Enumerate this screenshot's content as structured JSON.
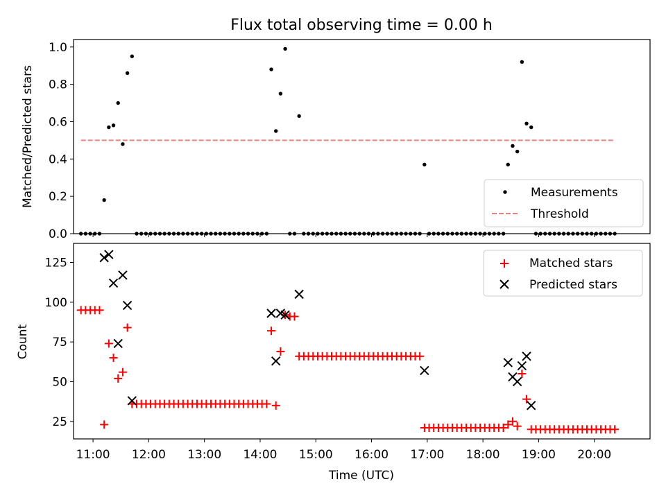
{
  "chart_data": [
    {
      "type": "scatter",
      "title": "Flux total observing time = 0.00 h",
      "xlabel": "",
      "ylabel": "Matched/Predicted stars",
      "xlim": [
        "10:39",
        "21:00"
      ],
      "ylim": [
        0,
        1.04
      ],
      "yticks": [
        0.0,
        0.2,
        0.4,
        0.6,
        0.8,
        1.0
      ],
      "ytick_labels": [
        "0.0",
        "0.2",
        "0.4",
        "0.6",
        "0.8",
        "1.0"
      ],
      "legend": {
        "placement": "lower-right",
        "entries": [
          "Measurements",
          "Threshold"
        ]
      },
      "series": [
        {
          "name": "Measurements",
          "marker": "dot",
          "color": "#000000",
          "points": [
            [
              "10:47",
              0
            ],
            [
              "10:52",
              0
            ],
            [
              "10:57",
              0
            ],
            [
              "11:02",
              0
            ],
            [
              "11:07",
              0
            ],
            [
              "11:12",
              0.18
            ],
            [
              "11:17",
              0.57
            ],
            [
              "11:22",
              0.58
            ],
            [
              "11:27",
              0.7
            ],
            [
              "11:32",
              0.48
            ],
            [
              "11:37",
              0.86
            ],
            [
              "11:42",
              0.95
            ],
            [
              "11:47",
              0
            ],
            [
              "11:52",
              0
            ],
            [
              "11:57",
              0
            ],
            [
              "12:02",
              0
            ],
            [
              "12:07",
              0
            ],
            [
              "12:12",
              0
            ],
            [
              "12:17",
              0
            ],
            [
              "12:22",
              0
            ],
            [
              "12:27",
              0
            ],
            [
              "12:32",
              0
            ],
            [
              "12:37",
              0
            ],
            [
              "12:42",
              0
            ],
            [
              "12:47",
              0
            ],
            [
              "12:52",
              0
            ],
            [
              "12:57",
              0
            ],
            [
              "13:02",
              0
            ],
            [
              "13:07",
              0
            ],
            [
              "13:12",
              0
            ],
            [
              "13:17",
              0
            ],
            [
              "13:22",
              0
            ],
            [
              "13:27",
              0
            ],
            [
              "13:32",
              0
            ],
            [
              "13:37",
              0
            ],
            [
              "13:42",
              0
            ],
            [
              "13:47",
              0
            ],
            [
              "13:52",
              0
            ],
            [
              "13:57",
              0
            ],
            [
              "14:02",
              0
            ],
            [
              "14:07",
              0
            ],
            [
              "14:12",
              0.88
            ],
            [
              "14:17",
              0.55
            ],
            [
              "14:22",
              0.75
            ],
            [
              "14:27",
              0.99
            ],
            [
              "14:32",
              0
            ],
            [
              "14:37",
              0
            ],
            [
              "14:42",
              0.63
            ],
            [
              "14:47",
              0
            ],
            [
              "14:52",
              0
            ],
            [
              "14:57",
              0
            ],
            [
              "15:02",
              0
            ],
            [
              "15:07",
              0
            ],
            [
              "15:12",
              0
            ],
            [
              "15:17",
              0
            ],
            [
              "15:22",
              0
            ],
            [
              "15:27",
              0
            ],
            [
              "15:32",
              0
            ],
            [
              "15:37",
              0
            ],
            [
              "15:42",
              0
            ],
            [
              "15:47",
              0
            ],
            [
              "15:52",
              0
            ],
            [
              "15:57",
              0
            ],
            [
              "16:02",
              0
            ],
            [
              "16:07",
              0
            ],
            [
              "16:12",
              0
            ],
            [
              "16:17",
              0
            ],
            [
              "16:22",
              0
            ],
            [
              "16:27",
              0
            ],
            [
              "16:32",
              0
            ],
            [
              "16:37",
              0
            ],
            [
              "16:42",
              0
            ],
            [
              "16:47",
              0
            ],
            [
              "16:52",
              0
            ],
            [
              "16:57",
              0.37
            ],
            [
              "17:02",
              0
            ],
            [
              "17:07",
              0
            ],
            [
              "17:12",
              0
            ],
            [
              "17:17",
              0
            ],
            [
              "17:22",
              0
            ],
            [
              "17:27",
              0
            ],
            [
              "17:32",
              0
            ],
            [
              "17:37",
              0
            ],
            [
              "17:42",
              0
            ],
            [
              "17:47",
              0
            ],
            [
              "17:52",
              0
            ],
            [
              "17:57",
              0
            ],
            [
              "18:02",
              0
            ],
            [
              "18:07",
              0
            ],
            [
              "18:12",
              0
            ],
            [
              "18:17",
              0
            ],
            [
              "18:22",
              0
            ],
            [
              "18:27",
              0.37
            ],
            [
              "18:32",
              0.47
            ],
            [
              "18:37",
              0.44
            ],
            [
              "18:42",
              0.92
            ],
            [
              "18:47",
              0.59
            ],
            [
              "18:52",
              0.57
            ],
            [
              "18:57",
              0
            ],
            [
              "19:02",
              0
            ],
            [
              "19:07",
              0
            ],
            [
              "19:12",
              0
            ],
            [
              "19:17",
              0
            ],
            [
              "19:22",
              0
            ],
            [
              "19:27",
              0
            ],
            [
              "19:32",
              0
            ],
            [
              "19:37",
              0
            ],
            [
              "19:42",
              0
            ],
            [
              "19:47",
              0
            ],
            [
              "19:52",
              0
            ],
            [
              "19:57",
              0
            ],
            [
              "20:02",
              0
            ],
            [
              "20:07",
              0
            ],
            [
              "20:12",
              0
            ],
            [
              "20:17",
              0
            ],
            [
              "20:22",
              0
            ]
          ]
        },
        {
          "name": "Threshold",
          "kind": "dashed-line",
          "color": "#f08080",
          "points": [
            [
              "10:47",
              0.5
            ],
            [
              "20:22",
              0.5
            ]
          ]
        }
      ]
    },
    {
      "type": "scatter",
      "title": "",
      "xlabel": "Time (UTC)",
      "ylabel": "Count",
      "xlim": [
        "10:39",
        "21:00"
      ],
      "ylim": [
        14,
        137
      ],
      "xticks": [
        "11:00",
        "12:00",
        "13:00",
        "14:00",
        "15:00",
        "16:00",
        "17:00",
        "18:00",
        "19:00",
        "20:00"
      ],
      "yticks": [
        25,
        50,
        75,
        100,
        125
      ],
      "ytick_labels": [
        "25",
        "50",
        "75",
        "100",
        "125"
      ],
      "legend": {
        "placement": "upper-right",
        "entries": [
          "Matched stars",
          "Predicted stars"
        ]
      },
      "series": [
        {
          "name": "Matched stars",
          "marker": "plus",
          "color": "#ff0000",
          "points": [
            [
              "10:47",
              95
            ],
            [
              "10:52",
              95
            ],
            [
              "10:57",
              95
            ],
            [
              "11:02",
              95
            ],
            [
              "11:07",
              95
            ],
            [
              "11:12",
              23
            ],
            [
              "11:17",
              74
            ],
            [
              "11:22",
              65
            ],
            [
              "11:27",
              52
            ],
            [
              "11:32",
              56
            ],
            [
              "11:37",
              84
            ],
            [
              "11:42",
              36
            ],
            [
              "11:47",
              36
            ],
            [
              "11:52",
              36
            ],
            [
              "11:57",
              36
            ],
            [
              "12:02",
              36
            ],
            [
              "12:07",
              36
            ],
            [
              "12:12",
              36
            ],
            [
              "12:17",
              36
            ],
            [
              "12:22",
              36
            ],
            [
              "12:27",
              36
            ],
            [
              "12:32",
              36
            ],
            [
              "12:37",
              36
            ],
            [
              "12:42",
              36
            ],
            [
              "12:47",
              36
            ],
            [
              "12:52",
              36
            ],
            [
              "12:57",
              36
            ],
            [
              "13:02",
              36
            ],
            [
              "13:07",
              36
            ],
            [
              "13:12",
              36
            ],
            [
              "13:17",
              36
            ],
            [
              "13:22",
              36
            ],
            [
              "13:27",
              36
            ],
            [
              "13:32",
              36
            ],
            [
              "13:37",
              36
            ],
            [
              "13:42",
              36
            ],
            [
              "13:47",
              36
            ],
            [
              "13:52",
              36
            ],
            [
              "13:57",
              36
            ],
            [
              "14:02",
              36
            ],
            [
              "14:07",
              36
            ],
            [
              "14:12",
              82
            ],
            [
              "14:17",
              35
            ],
            [
              "14:22",
              69
            ],
            [
              "14:27",
              92
            ],
            [
              "14:32",
              91
            ],
            [
              "14:37",
              91
            ],
            [
              "14:42",
              66
            ],
            [
              "14:47",
              66
            ],
            [
              "14:52",
              66
            ],
            [
              "14:57",
              66
            ],
            [
              "15:02",
              66
            ],
            [
              "15:07",
              66
            ],
            [
              "15:12",
              66
            ],
            [
              "15:17",
              66
            ],
            [
              "15:22",
              66
            ],
            [
              "15:27",
              66
            ],
            [
              "15:32",
              66
            ],
            [
              "15:37",
              66
            ],
            [
              "15:42",
              66
            ],
            [
              "15:47",
              66
            ],
            [
              "15:52",
              66
            ],
            [
              "15:57",
              66
            ],
            [
              "16:02",
              66
            ],
            [
              "16:07",
              66
            ],
            [
              "16:12",
              66
            ],
            [
              "16:17",
              66
            ],
            [
              "16:22",
              66
            ],
            [
              "16:27",
              66
            ],
            [
              "16:32",
              66
            ],
            [
              "16:37",
              66
            ],
            [
              "16:42",
              66
            ],
            [
              "16:47",
              66
            ],
            [
              "16:52",
              66
            ],
            [
              "16:57",
              21
            ],
            [
              "17:02",
              21
            ],
            [
              "17:07",
              21
            ],
            [
              "17:12",
              21
            ],
            [
              "17:17",
              21
            ],
            [
              "17:22",
              21
            ],
            [
              "17:27",
              21
            ],
            [
              "17:32",
              21
            ],
            [
              "17:37",
              21
            ],
            [
              "17:42",
              21
            ],
            [
              "17:47",
              21
            ],
            [
              "17:52",
              21
            ],
            [
              "17:57",
              21
            ],
            [
              "18:02",
              21
            ],
            [
              "18:07",
              21
            ],
            [
              "18:12",
              21
            ],
            [
              "18:17",
              21
            ],
            [
              "18:22",
              21
            ],
            [
              "18:27",
              23
            ],
            [
              "18:32",
              25
            ],
            [
              "18:37",
              22
            ],
            [
              "18:42",
              55
            ],
            [
              "18:47",
              39
            ],
            [
              "18:52",
              20
            ],
            [
              "18:57",
              20
            ],
            [
              "19:02",
              20
            ],
            [
              "19:07",
              20
            ],
            [
              "19:12",
              20
            ],
            [
              "19:17",
              20
            ],
            [
              "19:22",
              20
            ],
            [
              "19:27",
              20
            ],
            [
              "19:32",
              20
            ],
            [
              "19:37",
              20
            ],
            [
              "19:42",
              20
            ],
            [
              "19:47",
              20
            ],
            [
              "19:52",
              20
            ],
            [
              "19:57",
              20
            ],
            [
              "20:02",
              20
            ],
            [
              "20:07",
              20
            ],
            [
              "20:12",
              20
            ],
            [
              "20:17",
              20
            ],
            [
              "20:22",
              20
            ]
          ]
        },
        {
          "name": "Predicted stars",
          "marker": "x",
          "color": "#000000",
          "points": [
            [
              "11:12",
              128
            ],
            [
              "11:17",
              130
            ],
            [
              "11:22",
              112
            ],
            [
              "11:27",
              74
            ],
            [
              "11:32",
              117
            ],
            [
              "11:37",
              98
            ],
            [
              "11:42",
              38
            ],
            [
              "14:12",
              93
            ],
            [
              "14:17",
              63
            ],
            [
              "14:22",
              93
            ],
            [
              "14:27",
              92
            ],
            [
              "14:42",
              105
            ],
            [
              "16:57",
              57
            ],
            [
              "18:27",
              62
            ],
            [
              "18:32",
              53
            ],
            [
              "18:37",
              50
            ],
            [
              "18:42",
              60
            ],
            [
              "18:47",
              66
            ],
            [
              "18:52",
              35
            ]
          ]
        }
      ]
    }
  ]
}
